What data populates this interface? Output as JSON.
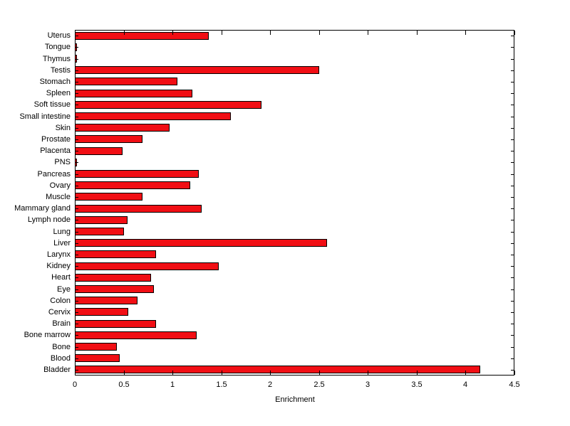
{
  "chart_data": {
    "type": "bar",
    "orientation": "horizontal",
    "title": "",
    "xlabel": "Enrichment",
    "ylabel": "",
    "xlim": [
      0,
      4.5
    ],
    "xticks": [
      0,
      0.5,
      1,
      1.5,
      2,
      2.5,
      3,
      3.5,
      4,
      4.5
    ],
    "xtick_labels": [
      "0",
      "0.5",
      "1",
      "1.5",
      "2",
      "2.5",
      "3",
      "3.5",
      "4",
      "4.5"
    ],
    "grid": false,
    "legend": null,
    "bar_color": "#f10e14",
    "bar_edge_color": "#000000",
    "background_color": "#ffffff",
    "categories": [
      "Uterus",
      "Tongue",
      "Thymus",
      "Testis",
      "Stomach",
      "Spleen",
      "Soft tissue",
      "Small intestine",
      "Skin",
      "Prostate",
      "Placenta",
      "PNS",
      "Pancreas",
      "Ovary",
      "Muscle",
      "Mammary gland",
      "Lymph node",
      "Lung",
      "Liver",
      "Larynx",
      "Kidney",
      "Heart",
      "Eye",
      "Colon",
      "Cervix",
      "Brain",
      "Bone marrow",
      "Bone",
      "Blood",
      "Bladder"
    ],
    "values": [
      1.37,
      0.02,
      0.02,
      2.5,
      1.05,
      1.2,
      1.91,
      1.6,
      0.97,
      0.69,
      0.49,
      0.02,
      1.27,
      1.18,
      0.69,
      1.3,
      0.54,
      0.5,
      2.58,
      0.83,
      1.47,
      0.78,
      0.81,
      0.64,
      0.55,
      0.83,
      1.25,
      0.43,
      0.46,
      4.15
    ]
  }
}
